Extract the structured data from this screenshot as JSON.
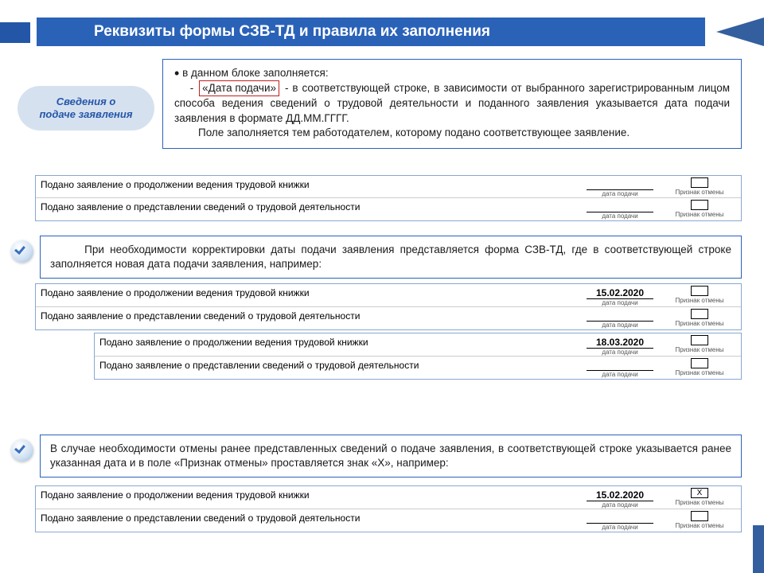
{
  "colors": {
    "primary": "#2a62b8",
    "pill_bg": "#d6e1f0",
    "pill_text": "#2456a8",
    "red": "#c02020"
  },
  "title": "Реквизиты формы СЗВ-ТД и правила их заполнения",
  "pill": {
    "line1": "Сведения о",
    "line2": "подаче заявления"
  },
  "info": {
    "intro": "в данном блоке заполняется:",
    "redterm": "«Дата подачи»",
    "body1": " - в соответствующей строке, в зависимости от выбранного зарегистрированным лицом способа ведения сведений о трудовой деятельности и поданного заявления  указывается дата подачи заявления в формате ДД.ММ.ГГГГ.",
    "body2": "Поле заполняется тем работодателем, которому подано соответствующее заявление."
  },
  "row_labels": {
    "r1": "Подано заявление о продолжении ведения трудовой книжки",
    "r2": "Подано заявление о представлении сведений о трудовой деятельности"
  },
  "captions": {
    "date": "дата подачи",
    "cancel": "Признак отмены"
  },
  "dates": {
    "d1": "15.02.2020",
    "d2": "18.03.2020",
    "d3": "15.02.2020"
  },
  "cancel_mark": "X",
  "note1": "При необходимости корректировки даты подачи заявления представляется форма СЗВ-ТД, где в соответствующей строке заполняется новая дата подачи заявления, например:",
  "note2": "В случае необходимости отмены ранее представленных сведений о подаче заявления, в соответствующей строке указывается ранее указанная дата и в поле «Признак отмены» проставляется знак «Х», например:"
}
